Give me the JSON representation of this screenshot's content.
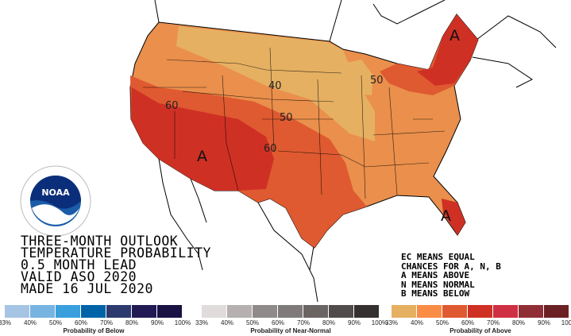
{
  "title_lines": [
    "THREE-MONTH OUTLOOK",
    "TEMPERATURE PROBABILITY",
    "0.5 MONTH LEAD",
    "VALID ASO 2020",
    "MADE 16 JUL 2020"
  ],
  "key_lines": [
    "EC MEANS EQUAL",
    "CHANCES FOR A, N, B",
    "A MEANS ABOVE",
    "N MEANS NORMAL",
    "B MEANS BELOW"
  ],
  "logo_text": "NOAA",
  "logo_ring_text": "NATIONAL OCEANIC AND ATMOSPHERIC ADMINISTRATION · U.S. DEPARTMENT OF COMMERCE",
  "contour_labels": [
    "40",
    "50",
    "60",
    "60",
    "50"
  ],
  "category_labels": [
    "A",
    "A",
    "A"
  ],
  "legends": [
    {
      "title": "Probability of Below",
      "ticks": [
        "33%",
        "40%",
        "50%",
        "60%",
        "70%",
        "80%",
        "90%",
        "100%"
      ],
      "colors": [
        "#a6c4e4",
        "#78b4e2",
        "#3a9fdd",
        "#0063a8",
        "#2c3a6e",
        "#221a55",
        "#1a1243"
      ]
    },
    {
      "title": "Probability of Near-Normal",
      "ticks": [
        "33%",
        "40%",
        "50%",
        "60%",
        "70%",
        "80%",
        "90%",
        "100%"
      ],
      "colors": [
        "#e0dcdc",
        "#b6b0b0",
        "#908b8b",
        "#807b7a",
        "#6a6463",
        "#514c4c",
        "#353030"
      ]
    },
    {
      "title": "Probability of Above",
      "ticks": [
        "33%",
        "40%",
        "50%",
        "60%",
        "70%",
        "80%",
        "90%",
        "100%"
      ],
      "colors": [
        "#e6b062",
        "#fa8c46",
        "#df5a30",
        "#cf3024",
        "#cf2f42",
        "#8f2f35",
        "#6b2124"
      ]
    }
  ]
}
